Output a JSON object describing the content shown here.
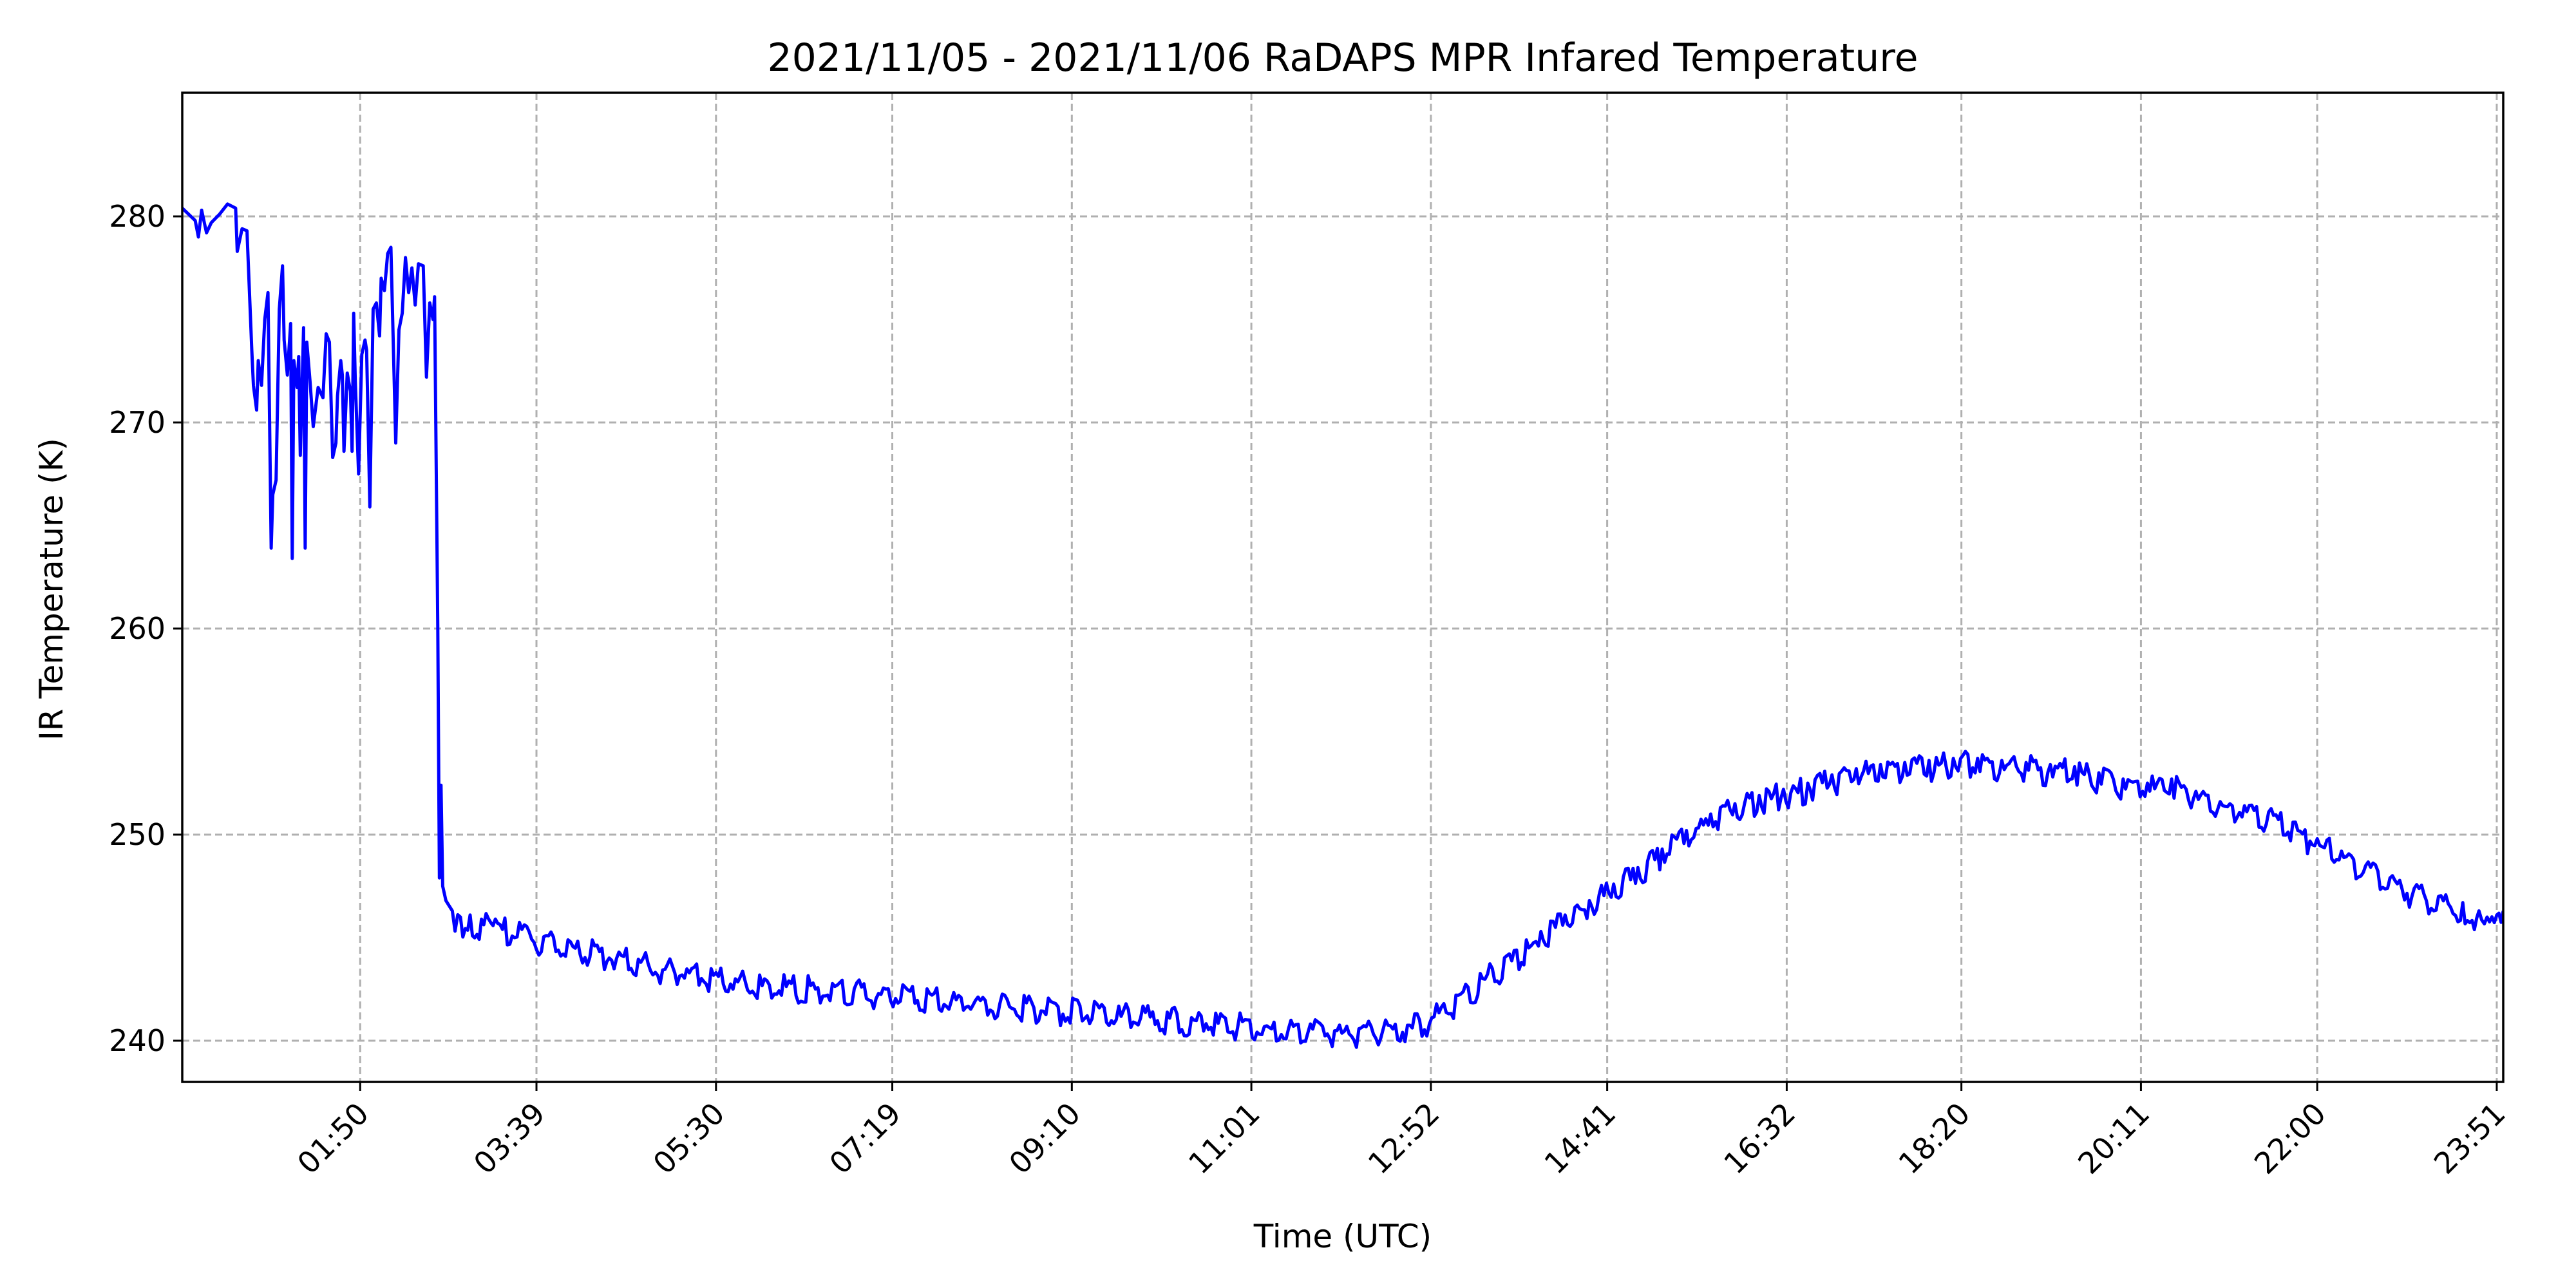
{
  "chart_data": {
    "type": "line",
    "title": "2021/11/05 - 2021/11/06 RaDAPS MPR Infared Temperature",
    "xlabel": "Time (UTC)",
    "ylabel": "IR Temperature (K)",
    "xlim": [
      "00:00",
      "23:55"
    ],
    "ylim": [
      238,
      286
    ],
    "yticks": [
      240,
      250,
      260,
      270,
      280
    ],
    "xticks": [
      "01:50",
      "03:39",
      "05:30",
      "07:19",
      "09:10",
      "11:01",
      "12:52",
      "14:41",
      "16:32",
      "18:20",
      "20:11",
      "22:00",
      "23:51"
    ],
    "grid": true,
    "legend": "none",
    "x_unit": "time of day (HH:MM, UTC)",
    "series": [
      {
        "color": "#0000ff",
        "points": [
          [
            "00:00",
            280.4
          ],
          [
            "00:08",
            279.8
          ],
          [
            "00:10",
            279.0
          ],
          [
            "00:12",
            280.3
          ],
          [
            "00:15",
            279.2
          ],
          [
            "00:18",
            279.7
          ],
          [
            "00:23",
            280.1
          ],
          [
            "00:28",
            280.6
          ],
          [
            "00:33",
            280.4
          ],
          [
            "00:34",
            278.3
          ],
          [
            "00:37",
            279.4
          ],
          [
            "00:40",
            279.3
          ],
          [
            "00:43",
            273.5
          ],
          [
            "00:44",
            271.8
          ],
          [
            "00:46",
            270.6
          ],
          [
            "00:47",
            273.0
          ],
          [
            "00:49",
            271.8
          ],
          [
            "00:51",
            275.0
          ],
          [
            "00:53",
            276.3
          ],
          [
            "00:55",
            263.9
          ],
          [
            "00:56",
            266.5
          ],
          [
            "00:58",
            267.2
          ],
          [
            "01:00",
            275.5
          ],
          [
            "01:02",
            277.6
          ],
          [
            "01:03",
            274.0
          ],
          [
            "01:05",
            272.3
          ],
          [
            "01:07",
            274.8
          ],
          [
            "01:08",
            263.4
          ],
          [
            "01:09",
            273.0
          ],
          [
            "01:11",
            271.7
          ],
          [
            "01:12",
            273.2
          ],
          [
            "01:13",
            268.4
          ],
          [
            "01:15",
            274.6
          ],
          [
            "01:16",
            263.9
          ],
          [
            "01:17",
            273.9
          ],
          [
            "01:19",
            272.0
          ],
          [
            "01:21",
            269.8
          ],
          [
            "01:24",
            271.7
          ],
          [
            "01:27",
            271.2
          ],
          [
            "01:29",
            274.3
          ],
          [
            "01:31",
            273.9
          ],
          [
            "01:33",
            268.3
          ],
          [
            "01:35",
            269.0
          ],
          [
            "01:36",
            271.3
          ],
          [
            "01:38",
            273.0
          ],
          [
            "01:39",
            272.3
          ],
          [
            "01:40",
            268.6
          ],
          [
            "01:42",
            272.4
          ],
          [
            "01:44",
            271.5
          ],
          [
            "01:45",
            268.6
          ],
          [
            "01:46",
            275.3
          ],
          [
            "01:47",
            272.0
          ],
          [
            "01:49",
            267.5
          ],
          [
            "01:51",
            273.3
          ],
          [
            "01:53",
            274.0
          ],
          [
            "01:54",
            273.5
          ],
          [
            "01:56",
            265.9
          ],
          [
            "01:58",
            275.5
          ],
          [
            "02:00",
            275.8
          ],
          [
            "02:02",
            274.2
          ],
          [
            "02:03",
            277.0
          ],
          [
            "02:05",
            276.4
          ],
          [
            "02:07",
            278.2
          ],
          [
            "02:09",
            278.5
          ],
          [
            "02:12",
            269.0
          ],
          [
            "02:14",
            274.5
          ],
          [
            "02:16",
            275.3
          ],
          [
            "02:18",
            278.0
          ],
          [
            "02:20",
            276.3
          ],
          [
            "02:22",
            277.5
          ],
          [
            "02:24",
            275.7
          ],
          [
            "02:26",
            277.7
          ],
          [
            "02:29",
            277.6
          ],
          [
            "02:31",
            272.2
          ],
          [
            "02:33",
            275.8
          ],
          [
            "02:35",
            275.0
          ],
          [
            "02:36",
            276.1
          ],
          [
            "02:38",
            260.0
          ],
          [
            "02:39",
            247.9
          ],
          [
            "02:40",
            252.4
          ],
          [
            "02:41",
            247.5
          ],
          [
            "02:43",
            246.8
          ],
          [
            "02:47",
            246.3
          ],
          [
            "02:52",
            246.0
          ],
          [
            "02:58",
            246.1
          ],
          [
            "03:05",
            245.9
          ],
          [
            "03:15",
            245.7
          ],
          [
            "03:30",
            245.4
          ],
          [
            "03:45",
            245.1
          ],
          [
            "04:00",
            244.8
          ],
          [
            "04:15",
            244.6
          ],
          [
            "04:30",
            244.3
          ],
          [
            "04:45",
            244.0
          ],
          [
            "05:00",
            243.7
          ],
          [
            "05:15",
            243.5
          ],
          [
            "05:30",
            243.3
          ],
          [
            "05:45",
            243.1
          ],
          [
            "06:00",
            243.0
          ],
          [
            "06:15",
            242.9
          ],
          [
            "06:30",
            242.8
          ],
          [
            "06:45",
            242.7
          ],
          [
            "07:00",
            242.6
          ],
          [
            "07:15",
            242.5
          ],
          [
            "07:30",
            242.4
          ],
          [
            "07:45",
            242.3
          ],
          [
            "08:00",
            242.2
          ],
          [
            "08:15",
            242.1
          ],
          [
            "08:30",
            242.0
          ],
          [
            "08:45",
            241.9
          ],
          [
            "09:00",
            241.8
          ],
          [
            "09:15",
            241.7
          ],
          [
            "09:30",
            241.6
          ],
          [
            "09:45",
            241.5
          ],
          [
            "10:00",
            241.4
          ],
          [
            "10:15",
            241.3
          ],
          [
            "10:30",
            241.2
          ],
          [
            "10:45",
            241.1
          ],
          [
            "11:00",
            241.0
          ],
          [
            "11:15",
            240.9
          ],
          [
            "11:30",
            240.8
          ],
          [
            "11:45",
            240.7
          ],
          [
            "12:00",
            240.7
          ],
          [
            "12:15",
            240.7
          ],
          [
            "12:30",
            240.8
          ],
          [
            "12:45",
            241.0
          ],
          [
            "13:00",
            241.8
          ],
          [
            "13:15",
            242.6
          ],
          [
            "13:30",
            243.5
          ],
          [
            "13:45",
            244.4
          ],
          [
            "14:00",
            245.3
          ],
          [
            "14:15",
            246.1
          ],
          [
            "14:30",
            246.8
          ],
          [
            "14:45",
            247.6
          ],
          [
            "15:00",
            248.4
          ],
          [
            "15:15",
            249.3
          ],
          [
            "15:30",
            250.2
          ],
          [
            "15:45",
            251.0
          ],
          [
            "16:00",
            251.5
          ],
          [
            "16:15",
            251.9
          ],
          [
            "16:30",
            252.2
          ],
          [
            "16:45",
            252.5
          ],
          [
            "17:00",
            252.9
          ],
          [
            "17:15",
            253.2
          ],
          [
            "17:30",
            253.4
          ],
          [
            "17:45",
            253.5
          ],
          [
            "18:00",
            253.6
          ],
          [
            "18:15",
            253.7
          ],
          [
            "18:30",
            253.7
          ],
          [
            "18:45",
            253.6
          ],
          [
            "19:00",
            253.5
          ],
          [
            "19:15",
            253.4
          ],
          [
            "19:30",
            253.3
          ],
          [
            "19:45",
            253.0
          ],
          [
            "20:00",
            252.7
          ],
          [
            "20:15",
            252.5
          ],
          [
            "20:30",
            252.7
          ],
          [
            "20:45",
            252.1
          ],
          [
            "21:00",
            251.6
          ],
          [
            "21:15",
            251.4
          ],
          [
            "21:30",
            251.1
          ],
          [
            "21:45",
            250.6
          ],
          [
            "22:00",
            249.8
          ],
          [
            "22:15",
            249.2
          ],
          [
            "22:30",
            248.5
          ],
          [
            "22:45",
            247.9
          ],
          [
            "23:00",
            247.4
          ],
          [
            "23:15",
            247.0
          ],
          [
            "23:30",
            246.7
          ],
          [
            "23:40",
            246.3
          ],
          [
            "23:45",
            246.0
          ],
          [
            "23:51",
            246.1
          ],
          [
            "23:55",
            246.3
          ]
        ]
      }
    ]
  }
}
